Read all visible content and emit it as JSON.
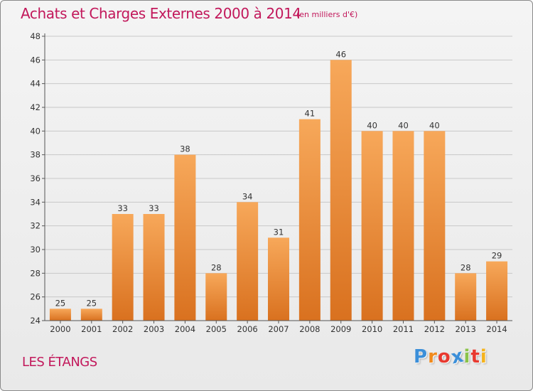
{
  "header": {
    "title": "Achats et Charges Externes 2000 à 2014",
    "subtitle": "(en milliers d'€)"
  },
  "footer": {
    "commune": "LES ÉTANGS",
    "logo_text": "Proxiti",
    "logo_letters": [
      {
        "char": "P",
        "color": "#3b8fd9"
      },
      {
        "char": "r",
        "color": "#f08a1c"
      },
      {
        "char": "o",
        "color": "#e8392f"
      },
      {
        "char": "x",
        "color": "#3b8fd9"
      },
      {
        "char": "i",
        "color": "#8bc34a"
      },
      {
        "char": "t",
        "color": "#e8392f"
      },
      {
        "char": "i",
        "color": "#f5b31c"
      }
    ]
  },
  "colors": {
    "title": "#c2185b",
    "bar_light": "#f7a85a",
    "bar_dark": "#d9711f",
    "grid": "#c8c8c8"
  },
  "chart_data": {
    "type": "bar",
    "title": "Achats et Charges Externes 2000 à 2014",
    "subtitle": "(en milliers d'€)",
    "categories": [
      "2000",
      "2001",
      "2002",
      "2003",
      "2004",
      "2005",
      "2006",
      "2007",
      "2008",
      "2009",
      "2010",
      "2011",
      "2012",
      "2013",
      "2014"
    ],
    "values": [
      25,
      25,
      33,
      33,
      38,
      28,
      34,
      31,
      41,
      46,
      40,
      40,
      40,
      28,
      29
    ],
    "ylim": [
      24,
      48
    ],
    "yticks": [
      24,
      26,
      28,
      30,
      32,
      34,
      36,
      38,
      40,
      42,
      44,
      46,
      48
    ],
    "xlabel": "",
    "ylabel": "",
    "grid": true,
    "data_labels": true
  }
}
